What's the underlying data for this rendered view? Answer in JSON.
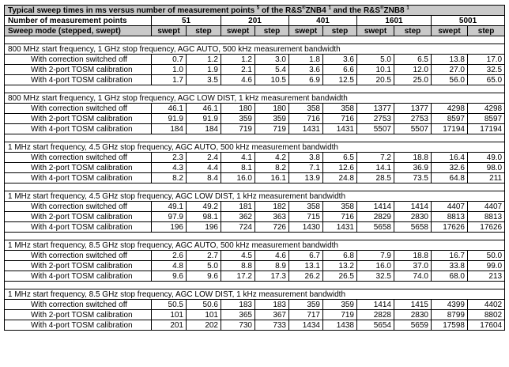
{
  "title": {
    "part1": "Typical sweep times in ms versus number of measurement points ",
    "sup1": "5",
    "part2": " of the R&S",
    "reg1": "®",
    "part3": "ZNB4 ",
    "sup2": "1",
    "part4": " and the R&S",
    "reg2": "®",
    "part5": "ZNB8 ",
    "sup3": "1"
  },
  "header": {
    "points_label": "Number of measurement points",
    "points": [
      "51",
      "201",
      "401",
      "1601",
      "5001"
    ],
    "mode_label": "Sweep mode (stepped, swept)",
    "modes": [
      "swept",
      "step",
      "swept",
      "step",
      "swept",
      "step",
      "swept",
      "step",
      "swept",
      "step"
    ]
  },
  "sections": [
    {
      "title": "800 MHz start frequency, 1 GHz stop frequency, AGC AUTO, 500 kHz measurement bandwidth",
      "rows": [
        {
          "label": "With correction switched off",
          "values": [
            "0.7",
            "1.2",
            "1.2",
            "3.0",
            "1.8",
            "3.6",
            "5.0",
            "6.5",
            "13.8",
            "17.0"
          ]
        },
        {
          "label": "With 2-port TOSM calibration",
          "values": [
            "1.0",
            "1.9",
            "2.1",
            "5.4",
            "3.6",
            "6.6",
            "10.1",
            "12.0",
            "27.0",
            "32.5"
          ]
        },
        {
          "label": "With 4-port TOSM calibration",
          "values": [
            "1.7",
            "3.5",
            "4.6",
            "10.5",
            "6.9",
            "12.5",
            "20.5",
            "25.0",
            "56.0",
            "65.0"
          ]
        }
      ]
    },
    {
      "title": "800 MHz start frequency, 1 GHz stop frequency, AGC LOW DIST, 1 kHz measurement bandwidth",
      "rows": [
        {
          "label": "With correction switched off",
          "values": [
            "46.1",
            "46.1",
            "180",
            "180",
            "358",
            "358",
            "1377",
            "1377",
            "4298",
            "4298"
          ]
        },
        {
          "label": "With 2-port TOSM calibration",
          "values": [
            "91.9",
            "91.9",
            "359",
            "359",
            "716",
            "716",
            "2753",
            "2753",
            "8597",
            "8597"
          ]
        },
        {
          "label": "With 4-port TOSM calibration",
          "values": [
            "184",
            "184",
            "719",
            "719",
            "1431",
            "1431",
            "5507",
            "5507",
            "17194",
            "17194"
          ]
        }
      ]
    },
    {
      "title": "1 MHz start frequency, 4.5 GHz stop frequency, AGC AUTO, 500 kHz measurement bandwidth",
      "rows": [
        {
          "label": "With correction switched off",
          "values": [
            "2.3",
            "2.4",
            "4.1",
            "4.2",
            "3.8",
            "6.5",
            "7.2",
            "18.8",
            "16.4",
            "49.0"
          ]
        },
        {
          "label": "With 2-port TOSM calibration",
          "values": [
            "4.3",
            "4.4",
            "8.1",
            "8.2",
            "7.1",
            "12.6",
            "14.1",
            "36.9",
            "32.6",
            "98.0"
          ]
        },
        {
          "label": "With 4-port TOSM calibration",
          "values": [
            "8.2",
            "8.4",
            "16.0",
            "16.1",
            "13.9",
            "24.8",
            "28.5",
            "73.5",
            "64.8",
            "211"
          ]
        }
      ]
    },
    {
      "title": "1 MHz start frequency, 4.5 GHz stop frequency, AGC LOW DIST, 1 kHz measurement bandwidth",
      "rows": [
        {
          "label": "With correction switched off",
          "values": [
            "49.1",
            "49.2",
            "181",
            "182",
            "358",
            "358",
            "1414",
            "1414",
            "4407",
            "4407"
          ]
        },
        {
          "label": "With 2-port TOSM calibration",
          "values": [
            "97.9",
            "98.1",
            "362",
            "363",
            "715",
            "716",
            "2829",
            "2830",
            "8813",
            "8813"
          ]
        },
        {
          "label": "With 4-port TOSM calibration",
          "values": [
            "196",
            "196",
            "724",
            "726",
            "1430",
            "1431",
            "5658",
            "5658",
            "17626",
            "17626"
          ]
        }
      ]
    },
    {
      "title": "1 MHz start frequency, 8.5 GHz stop frequency, AGC AUTO, 500 kHz measurement bandwidth",
      "rows": [
        {
          "label": "With correction switched off",
          "values": [
            "2.6",
            "2.7",
            "4.5",
            "4.6",
            "6.7",
            "6.8",
            "7.9",
            "18.8",
            "16.7",
            "50.0"
          ]
        },
        {
          "label": "With 2-port TOSM calibration",
          "values": [
            "4.8",
            "5.0",
            "8.8",
            "8.9",
            "13.1",
            "13.2",
            "16.0",
            "37.0",
            "33.8",
            "99.0"
          ]
        },
        {
          "label": "With 4-port TOSM calibration",
          "values": [
            "9.6",
            "9.6",
            "17.2",
            "17.3",
            "26.2",
            "26.5",
            "32.5",
            "74.0",
            "68.0",
            "213"
          ]
        }
      ]
    },
    {
      "title": "1 MHz start frequency, 8.5 GHz stop frequency, AGC LOW DIST, 1 kHz measurement bandwidth",
      "rows": [
        {
          "label": "With correction switched off",
          "values": [
            "50.5",
            "50.6",
            "183",
            "183",
            "359",
            "359",
            "1414",
            "1415",
            "4399",
            "4402"
          ]
        },
        {
          "label": "With 2-port TOSM calibration",
          "values": [
            "101",
            "101",
            "365",
            "367",
            "717",
            "719",
            "2828",
            "2830",
            "8799",
            "8802"
          ]
        },
        {
          "label": "With 4-port TOSM calibration",
          "values": [
            "201",
            "202",
            "730",
            "733",
            "1434",
            "1438",
            "5654",
            "5659",
            "17598",
            "17604"
          ]
        }
      ]
    }
  ]
}
